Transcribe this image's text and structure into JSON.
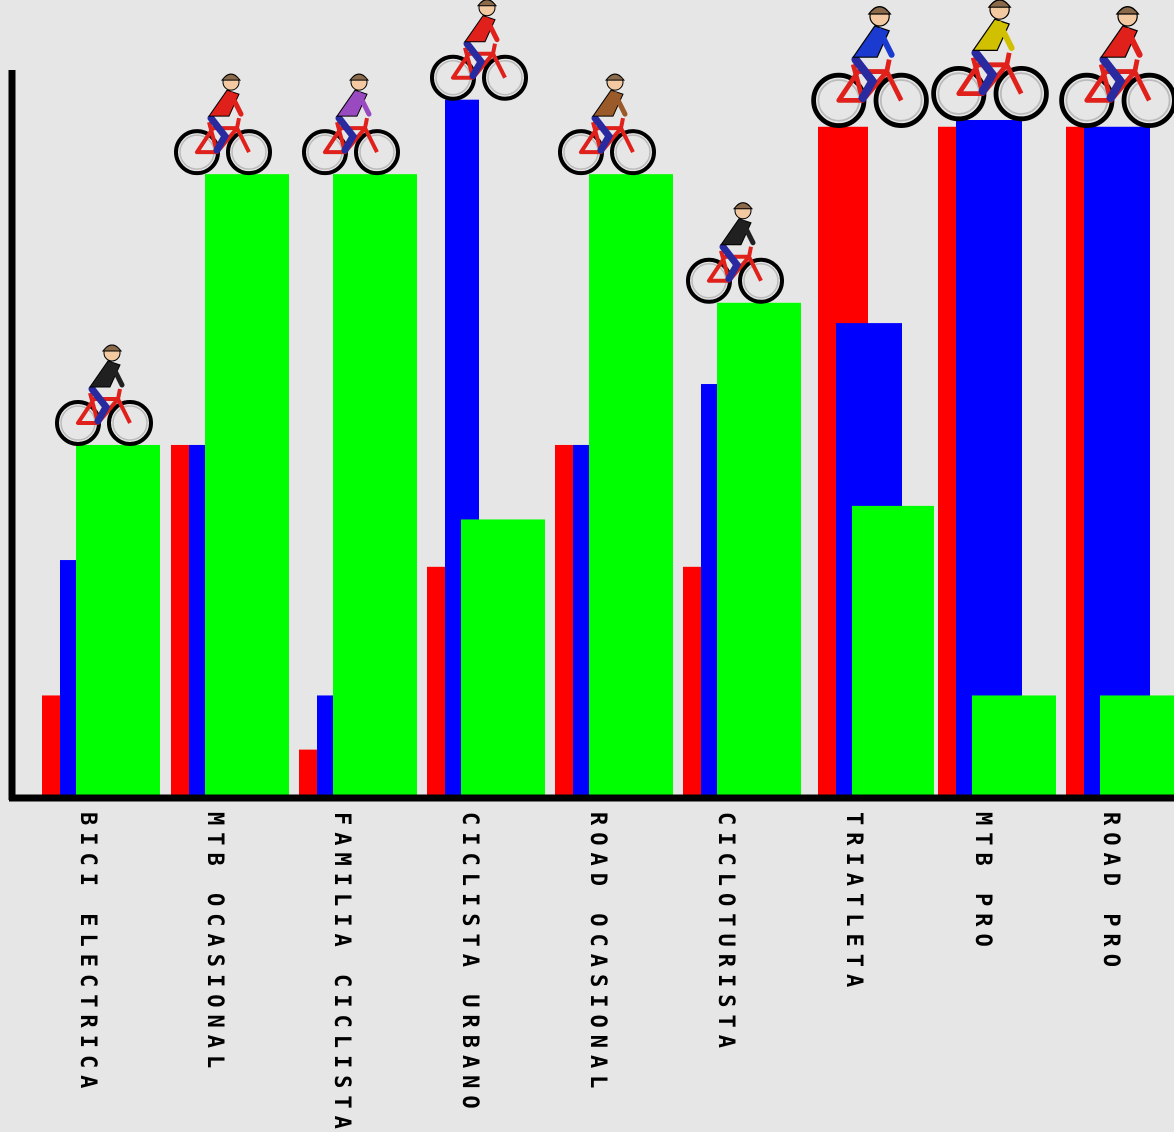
{
  "colors": {
    "background": "#e6e6e6",
    "axis": "#000000",
    "series_red": "#ff0000",
    "series_blue": "#0000ff",
    "series_green": "#00ff00"
  },
  "chart_data": {
    "type": "bar",
    "title": "",
    "xlabel": "",
    "ylabel": "",
    "ylim": [
      0,
      100
    ],
    "grid": false,
    "legend": "none",
    "categories": [
      "BICI ELECTRICA",
      "MTB OCASIONAL",
      "FAMILIA CICLISTA",
      "CICLISTA URBANO",
      "ROAD OCASIONAL",
      "CICLOTURISTA",
      "TRIATLETA",
      "MTB PRO",
      "ROAD PRO"
    ],
    "series": [
      {
        "color": "#ff0000",
        "values": [
          15,
          52,
          7,
          34,
          52,
          34,
          99,
          99,
          99
        ]
      },
      {
        "color": "#0000ff",
        "values": [
          35,
          52,
          15,
          103,
          52,
          61,
          70,
          100,
          99
        ]
      },
      {
        "color": "#00ff00",
        "values": [
          52,
          92,
          92,
          41,
          92,
          73,
          43,
          15,
          15
        ]
      }
    ],
    "icons": [
      "cyclist-electric-bike-icon",
      "cyclist-mtb-casual-icon",
      "cyclist-family-icon",
      "cyclist-urban-icon",
      "cyclist-road-casual-icon",
      "cyclist-touring-icon",
      "cyclist-triathlete-icon",
      "cyclist-mtb-pro-icon",
      "cyclist-road-pro-icon"
    ]
  }
}
